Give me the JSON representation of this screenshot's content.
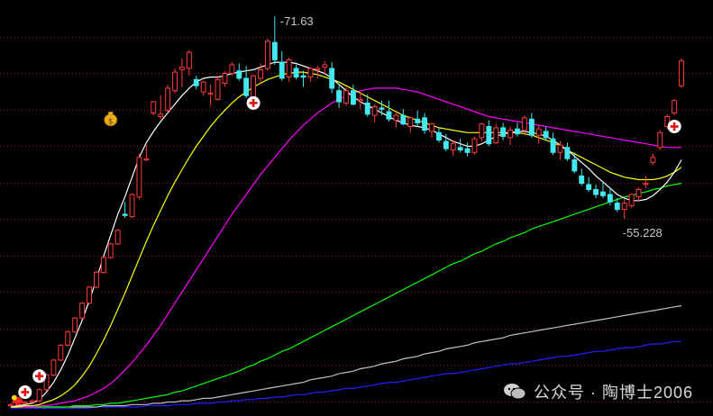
{
  "chart_data": {
    "type": "candlestick",
    "title": "",
    "xlabel": "",
    "ylabel": "",
    "grid": true,
    "y_high_label": "71.63",
    "y_low_label": "55.228",
    "ylim": [
      40,
      72.5
    ],
    "colors": {
      "up": "#ff3b3b",
      "down": "#43e8f0",
      "ma5": "#ffffff",
      "ma10": "#ffff00",
      "ma20": "#ff00ff",
      "ma60": "#00ff00",
      "ma120": "#c0c0c0",
      "ma250": "#2020ff",
      "grid": "#8b1a1a"
    },
    "candles": [
      [
        40.1,
        40.3,
        40.0,
        40.2
      ],
      [
        40.2,
        40.4,
        40.1,
        40.3
      ],
      [
        40.3,
        40.5,
        40.2,
        40.4
      ],
      [
        40.4,
        40.6,
        40.3,
        40.5
      ],
      [
        40.5,
        41.5,
        40.4,
        41.4
      ],
      [
        41.4,
        42.7,
        41.3,
        42.6
      ],
      [
        42.6,
        43.9,
        42.5,
        43.8
      ],
      [
        43.8,
        45.1,
        43.7,
        45.0
      ],
      [
        45.0,
        46.2,
        44.9,
        46.1
      ],
      [
        46.1,
        47.3,
        46.0,
        47.2
      ],
      [
        47.2,
        48.5,
        47.1,
        48.4
      ],
      [
        48.4,
        49.8,
        48.3,
        49.7
      ],
      [
        49.7,
        51.0,
        49.6,
        50.9
      ],
      [
        50.9,
        52.2,
        50.8,
        52.1
      ],
      [
        52.1,
        53.3,
        52.0,
        53.2
      ],
      [
        53.2,
        54.4,
        53.1,
        54.3
      ],
      [
        55.6,
        56.6,
        55.3,
        55.5
      ],
      [
        55.4,
        57.3,
        55.3,
        57.2
      ],
      [
        57.0,
        60.5,
        56.8,
        60.2
      ],
      [
        60.0,
        61.2,
        59.9,
        60.1
      ],
      [
        63.8,
        64.8,
        63.6,
        64.7
      ],
      [
        63.5,
        65.2,
        63.3,
        63.7
      ],
      [
        64.0,
        66.1,
        63.8,
        65.8
      ],
      [
        65.6,
        67.4,
        65.4,
        67.1
      ],
      [
        67.3,
        68.2,
        65.9,
        67.5
      ],
      [
        67.4,
        68.9,
        66.8,
        68.7
      ],
      [
        66.5,
        66.8,
        65.7,
        66.0
      ],
      [
        65.5,
        66.4,
        65.2,
        66.3
      ],
      [
        65.4,
        66.1,
        64.4,
        65.4
      ],
      [
        64.9,
        66.8,
        64.8,
        66.5
      ],
      [
        66.2,
        67.2,
        65.9,
        67.0
      ],
      [
        67.0,
        67.9,
        66.8,
        67.7
      ],
      [
        67.2,
        67.8,
        66.4,
        66.6
      ],
      [
        66.6,
        67.6,
        65.0,
        65.2
      ],
      [
        65.1,
        66.9,
        64.9,
        66.8
      ],
      [
        66.6,
        67.8,
        66.2,
        67.3
      ],
      [
        67.4,
        69.8,
        67.2,
        69.6
      ],
      [
        69.5,
        71.63,
        67.7,
        68.1
      ],
      [
        67.9,
        68.8,
        66.4,
        66.6
      ],
      [
        66.7,
        68.3,
        66.3,
        68.1
      ],
      [
        67.4,
        67.7,
        66.5,
        66.7
      ],
      [
        66.8,
        67.2,
        65.9,
        66.7
      ],
      [
        66.7,
        67.5,
        66.3,
        67.4
      ],
      [
        67.3,
        67.6,
        66.6,
        67.4
      ],
      [
        67.5,
        68.0,
        66.9,
        67.7
      ],
      [
        67.4,
        67.9,
        65.4,
        65.8
      ],
      [
        65.6,
        66.2,
        64.2,
        64.7
      ],
      [
        64.6,
        65.9,
        64.4,
        65.6
      ],
      [
        65.6,
        66.1,
        64.4,
        64.5
      ],
      [
        64.8,
        65.5,
        64.1,
        64.9
      ],
      [
        64.6,
        65.3,
        63.5,
        63.7
      ],
      [
        63.6,
        64.5,
        63.0,
        64.3
      ],
      [
        64.2,
        64.8,
        63.6,
        64.1
      ],
      [
        63.9,
        64.8,
        63.1,
        63.3
      ],
      [
        63.2,
        63.8,
        62.6,
        63.6
      ],
      [
        63.6,
        64.1,
        62.8,
        62.9
      ],
      [
        62.7,
        63.5,
        62.2,
        63.4
      ],
      [
        63.3,
        64.0,
        62.7,
        63.0
      ],
      [
        63.4,
        63.8,
        62.1,
        62.4
      ],
      [
        62.3,
        63.0,
        61.8,
        62.9
      ],
      [
        62.2,
        62.6,
        61.4,
        61.6
      ],
      [
        61.5,
        62.1,
        60.7,
        60.9
      ],
      [
        60.8,
        61.6,
        60.3,
        61.3
      ],
      [
        61.0,
        61.7,
        60.6,
        60.8
      ],
      [
        60.9,
        61.4,
        60.3,
        60.6
      ],
      [
        60.6,
        61.9,
        60.4,
        61.7
      ],
      [
        61.8,
        63.0,
        61.5,
        62.9
      ],
      [
        62.7,
        63.2,
        61.1,
        61.3
      ],
      [
        61.4,
        62.9,
        61.3,
        62.6
      ],
      [
        62.6,
        63.0,
        61.6,
        61.9
      ],
      [
        61.8,
        62.7,
        61.2,
        62.4
      ],
      [
        62.5,
        63.0,
        61.9,
        62.1
      ],
      [
        62.4,
        63.6,
        62.1,
        63.4
      ],
      [
        63.3,
        63.8,
        61.8,
        62.0
      ],
      [
        62.0,
        62.8,
        61.3,
        62.5
      ],
      [
        62.3,
        62.7,
        61.6,
        61.8
      ],
      [
        61.7,
        62.2,
        60.4,
        60.6
      ],
      [
        60.6,
        61.5,
        60.0,
        61.2
      ],
      [
        61.0,
        61.4,
        59.9,
        60.1
      ],
      [
        60.0,
        60.6,
        58.9,
        59.1
      ],
      [
        58.7,
        59.3,
        57.9,
        58.1
      ],
      [
        58.0,
        58.6,
        57.4,
        57.6
      ],
      [
        57.6,
        58.0,
        56.9,
        57.2
      ],
      [
        57.4,
        58.2,
        56.9,
        57.1
      ],
      [
        57.2,
        57.8,
        56.3,
        56.6
      ],
      [
        56.5,
        56.9,
        55.8,
        56.0
      ],
      [
        56.0,
        56.8,
        55.228,
        56.5
      ],
      [
        56.3,
        57.3,
        56.1,
        57.2
      ],
      [
        57.0,
        57.8,
        56.6,
        57.6
      ],
      [
        58.0,
        58.7,
        57.7,
        58.1
      ],
      [
        59.8,
        60.5,
        59.6,
        60.2
      ],
      [
        61.0,
        62.4,
        60.8,
        62.2
      ],
      [
        62.7,
        63.7,
        62.5,
        63.5
      ],
      [
        63.8,
        64.9,
        63.6,
        64.8
      ],
      [
        66.0,
        68.2,
        65.8,
        68.0
      ]
    ],
    "ma5": [
      40.0,
      40.1,
      40.2,
      40.3,
      40.6,
      41.2,
      42.0,
      43.0,
      44.2,
      45.6,
      47.0,
      48.6,
      50.3,
      52.2,
      53.9,
      55.6,
      57.0,
      58.6,
      60.2,
      61.4,
      62.3,
      63.1,
      63.8,
      64.5,
      65.2,
      65.8,
      66.3,
      66.6,
      66.7,
      66.7,
      66.8,
      67.0,
      67.1,
      67.2,
      67.3,
      67.5,
      67.7,
      67.9,
      67.9,
      67.9,
      67.8,
      67.6,
      67.4,
      67.2,
      67.0,
      66.6,
      66.1,
      65.6,
      65.1,
      64.7,
      64.4,
      64.1,
      63.8,
      63.5,
      63.2,
      63.0,
      62.8,
      62.7,
      62.6,
      62.4,
      62.1,
      61.8,
      61.5,
      61.3,
      61.1,
      61.1,
      61.3,
      61.6,
      61.9,
      62.1,
      62.2,
      62.3,
      62.3,
      62.2,
      62.1,
      61.9,
      61.6,
      61.2,
      60.8,
      60.3,
      59.8,
      59.3,
      58.7,
      58.2,
      57.7,
      57.2,
      56.9,
      56.7,
      56.7,
      56.8,
      57.1,
      57.6,
      58.2,
      59.0,
      60.0
    ],
    "ma10": [
      40.0,
      40.0,
      40.1,
      40.1,
      40.2,
      40.4,
      40.6,
      40.9,
      41.3,
      41.8,
      42.5,
      43.3,
      44.3,
      45.4,
      46.6,
      47.9,
      49.2,
      50.6,
      52.0,
      53.4,
      54.7,
      55.9,
      57.1,
      58.2,
      59.2,
      60.2,
      61.1,
      61.9,
      62.7,
      63.4,
      64.0,
      64.6,
      65.1,
      65.5,
      65.9,
      66.2,
      66.5,
      66.7,
      66.9,
      67.0,
      67.1,
      67.1,
      67.0,
      66.9,
      66.7,
      66.5,
      66.3,
      66.0,
      65.7,
      65.4,
      65.1,
      64.8,
      64.5,
      64.2,
      63.9,
      63.6,
      63.4,
      63.2,
      63.0,
      62.8,
      62.6,
      62.5,
      62.4,
      62.3,
      62.2,
      62.2,
      62.2,
      62.2,
      62.2,
      62.2,
      62.2,
      62.2,
      62.1,
      62.0,
      61.8,
      61.6,
      61.4,
      61.1,
      60.8,
      60.5,
      60.2,
      59.9,
      59.6,
      59.3,
      59.0,
      58.8,
      58.6,
      58.5,
      58.4,
      58.4,
      58.4,
      58.5,
      58.7,
      59.0,
      59.4
    ],
    "ma20": [
      40.0,
      40.0,
      40.0,
      40.0,
      40.1,
      40.1,
      40.2,
      40.3,
      40.4,
      40.5,
      40.7,
      40.9,
      41.2,
      41.5,
      41.9,
      42.4,
      43.0,
      43.6,
      44.3,
      45.0,
      45.8,
      46.6,
      47.5,
      48.4,
      49.3,
      50.2,
      51.1,
      52.0,
      52.9,
      53.8,
      54.7,
      55.6,
      56.4,
      57.2,
      58.0,
      58.8,
      59.5,
      60.2,
      60.9,
      61.6,
      62.2,
      62.8,
      63.3,
      63.8,
      64.2,
      64.6,
      64.9,
      65.2,
      65.4,
      65.6,
      65.7,
      65.8,
      65.8,
      65.8,
      65.8,
      65.7,
      65.6,
      65.5,
      65.3,
      65.1,
      64.9,
      64.7,
      64.5,
      64.3,
      64.1,
      63.9,
      63.7,
      63.5,
      63.4,
      63.3,
      63.2,
      63.1,
      63.0,
      62.9,
      62.8,
      62.7,
      62.6,
      62.5,
      62.4,
      62.3,
      62.2,
      62.1,
      62.0,
      61.9,
      61.8,
      61.7,
      61.6,
      61.5,
      61.4,
      61.3,
      61.2,
      61.1,
      61.0,
      61.0,
      61.0
    ],
    "ma60": [
      40.0,
      40.0,
      40.0,
      40.0,
      40.0,
      40.0,
      40.0,
      40.0,
      40.0,
      40.1,
      40.1,
      40.1,
      40.2,
      40.2,
      40.3,
      40.3,
      40.4,
      40.5,
      40.6,
      40.7,
      40.8,
      40.9,
      41.0,
      41.2,
      41.3,
      41.5,
      41.7,
      41.9,
      42.1,
      42.3,
      42.5,
      42.7,
      42.9,
      43.2,
      43.4,
      43.7,
      43.9,
      44.2,
      44.5,
      44.7,
      45.0,
      45.3,
      45.6,
      45.9,
      46.2,
      46.5,
      46.8,
      47.1,
      47.4,
      47.7,
      48.0,
      48.3,
      48.6,
      48.9,
      49.2,
      49.5,
      49.8,
      50.1,
      50.4,
      50.7,
      51.0,
      51.3,
      51.6,
      51.8,
      52.1,
      52.4,
      52.6,
      52.9,
      53.2,
      53.4,
      53.7,
      53.9,
      54.1,
      54.4,
      54.6,
      54.8,
      55.0,
      55.2,
      55.4,
      55.6,
      55.8,
      56.0,
      56.2,
      56.4,
      56.6,
      56.8,
      57.0,
      57.1,
      57.3,
      57.4,
      57.6,
      57.7,
      57.9,
      58.0,
      58.1
    ],
    "ma120": [
      40.0,
      40.0,
      40.0,
      40.0,
      40.0,
      40.0,
      40.0,
      40.0,
      40.0,
      40.0,
      40.0,
      40.0,
      40.0,
      40.1,
      40.1,
      40.1,
      40.1,
      40.2,
      40.2,
      40.2,
      40.3,
      40.3,
      40.4,
      40.4,
      40.5,
      40.5,
      40.6,
      40.7,
      40.7,
      40.8,
      40.9,
      41.0,
      41.1,
      41.2,
      41.3,
      41.4,
      41.5,
      41.6,
      41.7,
      41.8,
      41.9,
      42.0,
      42.2,
      42.3,
      42.4,
      42.5,
      42.7,
      42.8,
      42.9,
      43.1,
      43.2,
      43.3,
      43.5,
      43.6,
      43.7,
      43.9,
      44.0,
      44.1,
      44.3,
      44.4,
      44.5,
      44.7,
      44.8,
      44.9,
      45.0,
      45.2,
      45.3,
      45.4,
      45.5,
      45.6,
      45.8,
      45.9,
      46.0,
      46.1,
      46.2,
      46.3,
      46.4,
      46.5,
      46.6,
      46.7,
      46.8,
      46.9,
      47.0,
      47.1,
      47.2,
      47.3,
      47.4,
      47.5,
      47.6,
      47.7,
      47.8,
      47.9,
      48.0,
      48.1,
      48.2
    ],
    "ma250": [
      39.9,
      39.9,
      39.9,
      39.9,
      39.9,
      39.9,
      39.9,
      39.9,
      39.9,
      39.9,
      39.9,
      39.9,
      40.0,
      40.0,
      40.0,
      40.0,
      40.0,
      40.0,
      40.0,
      40.1,
      40.1,
      40.1,
      40.1,
      40.2,
      40.2,
      40.2,
      40.3,
      40.3,
      40.3,
      40.4,
      40.4,
      40.5,
      40.5,
      40.6,
      40.6,
      40.7,
      40.7,
      40.8,
      40.8,
      40.9,
      41.0,
      41.0,
      41.1,
      41.2,
      41.2,
      41.3,
      41.4,
      41.5,
      41.5,
      41.6,
      41.7,
      41.8,
      41.9,
      42.0,
      42.0,
      42.1,
      42.2,
      42.3,
      42.4,
      42.5,
      42.6,
      42.7,
      42.7,
      42.8,
      42.9,
      43.0,
      43.1,
      43.2,
      43.3,
      43.4,
      43.5,
      43.5,
      43.6,
      43.7,
      43.8,
      43.9,
      44.0,
      44.1,
      44.1,
      44.2,
      44.3,
      44.4,
      44.5,
      44.5,
      44.6,
      44.7,
      44.8,
      44.8,
      44.9,
      45.0,
      45.1,
      45.1,
      45.2,
      45.3,
      45.3
    ]
  },
  "annotations": {
    "buy_marks": [
      {
        "index": 2,
        "price": 41.2
      },
      {
        "index": 4,
        "price": 42.5
      },
      {
        "index": 34,
        "price": 64.6
      },
      {
        "index": 93,
        "price": 62.7
      }
    ],
    "money_mark": {
      "index": 14,
      "price": 63.3
    },
    "flag_mark": {
      "index": 1,
      "price": 40.6
    }
  },
  "watermark": {
    "text": "公众号 · 陶博士2006"
  }
}
